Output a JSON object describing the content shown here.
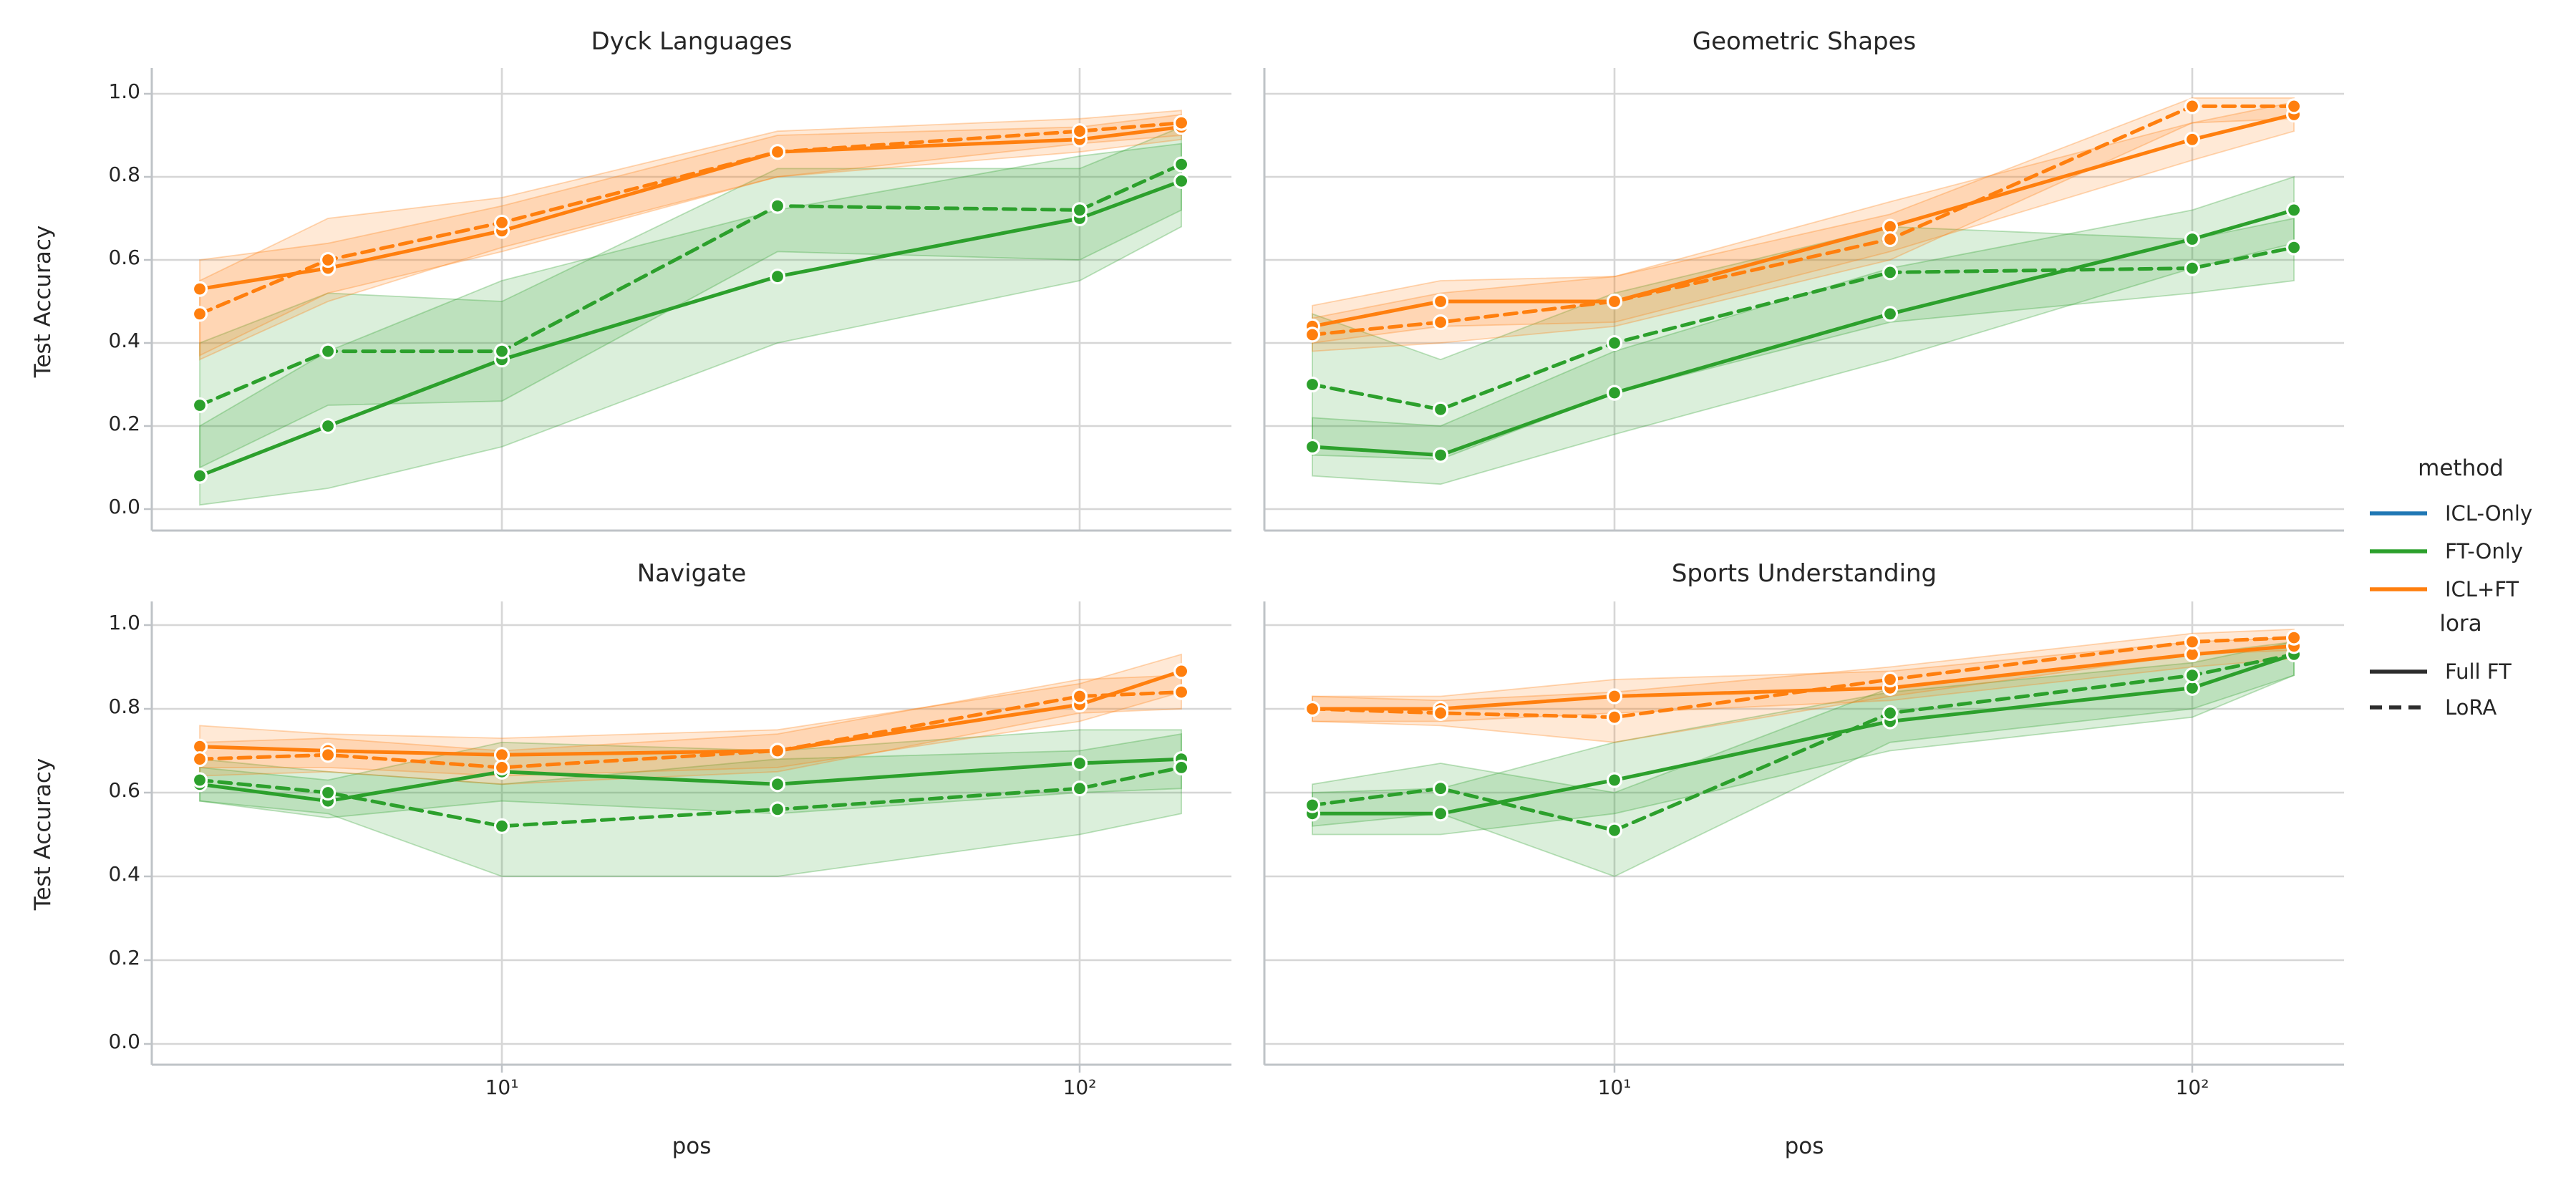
{
  "figure": {
    "background": "#ffffff",
    "text_color": "#262626",
    "grid_color": "#d6d6d6",
    "spine_color": "#bfc3c7",
    "marker_edge_color": "#ffffff"
  },
  "axes": {
    "xlabel": "pos",
    "ylabel": "Test Accuracy",
    "x_tick_labels": [
      "10¹",
      "10²"
    ],
    "x_tick_values": [
      10,
      100
    ],
    "y_tick_labels": [
      "0.0",
      "0.2",
      "0.4",
      "0.6",
      "0.8",
      "1.0"
    ],
    "y_tick_values": [
      0.0,
      0.2,
      0.4,
      0.6,
      0.8,
      1.0
    ],
    "ylim": [
      0.0,
      1.0
    ],
    "xscale": "log",
    "grid": true
  },
  "legend": {
    "method_group": {
      "title": "method",
      "items": [
        {
          "label": "ICL-Only",
          "color": "#1f77b4",
          "dash": false
        },
        {
          "label": "FT-Only",
          "color": "#2ca02c",
          "dash": false
        },
        {
          "label": "ICL+FT",
          "color": "#ff7f0e",
          "dash": false
        }
      ]
    },
    "lora_group": {
      "title": "lora",
      "items": [
        {
          "label": "Full FT",
          "color": "#2d2d2d",
          "dash": false
        },
        {
          "label": "LoRA",
          "color": "#2d2d2d",
          "dash": true
        }
      ]
    }
  },
  "chart_data": [
    {
      "title": "Dyck Languages",
      "type": "line",
      "xscale": "log",
      "x": [
        3,
        5,
        10,
        30,
        100,
        150
      ],
      "ylim": [
        0,
        1
      ],
      "series": [
        {
          "method": "FT-Only",
          "lora": "Full FT",
          "color": "#2ca02c",
          "dash": false,
          "values": [
            0.08,
            0.2,
            0.36,
            0.56,
            0.7,
            0.79
          ],
          "ci_lo": [
            0.01,
            0.05,
            0.15,
            0.4,
            0.55,
            0.68
          ],
          "ci_hi": [
            0.2,
            0.38,
            0.55,
            0.72,
            0.85,
            0.88
          ]
        },
        {
          "method": "FT-Only",
          "lora": "LoRA",
          "color": "#2ca02c",
          "dash": true,
          "values": [
            0.25,
            0.38,
            0.38,
            0.73,
            0.72,
            0.83
          ],
          "ci_lo": [
            0.1,
            0.25,
            0.26,
            0.62,
            0.6,
            0.72
          ],
          "ci_hi": [
            0.4,
            0.52,
            0.5,
            0.82,
            0.82,
            0.92
          ]
        },
        {
          "method": "ICL+FT",
          "lora": "Full FT",
          "color": "#ff7f0e",
          "dash": false,
          "values": [
            0.53,
            0.58,
            0.67,
            0.86,
            0.89,
            0.92
          ],
          "ci_lo": [
            0.37,
            0.52,
            0.62,
            0.8,
            0.86,
            0.89
          ],
          "ci_hi": [
            0.6,
            0.64,
            0.73,
            0.9,
            0.92,
            0.95
          ]
        },
        {
          "method": "ICL+FT",
          "lora": "LoRA",
          "color": "#ff7f0e",
          "dash": true,
          "values": [
            0.47,
            0.6,
            0.69,
            0.86,
            0.91,
            0.93
          ],
          "ci_lo": [
            0.36,
            0.5,
            0.63,
            0.8,
            0.88,
            0.9
          ],
          "ci_hi": [
            0.55,
            0.7,
            0.75,
            0.91,
            0.94,
            0.96
          ]
        }
      ]
    },
    {
      "title": "Geometric Shapes",
      "type": "line",
      "xscale": "log",
      "x": [
        3,
        5,
        10,
        30,
        100,
        150
      ],
      "ylim": [
        0,
        1
      ],
      "series": [
        {
          "method": "FT-Only",
          "lora": "Full FT",
          "color": "#2ca02c",
          "dash": false,
          "values": [
            0.15,
            0.13,
            0.28,
            0.47,
            0.65,
            0.72
          ],
          "ci_lo": [
            0.08,
            0.06,
            0.18,
            0.36,
            0.58,
            0.64
          ],
          "ci_hi": [
            0.22,
            0.2,
            0.38,
            0.58,
            0.72,
            0.8
          ]
        },
        {
          "method": "FT-Only",
          "lora": "LoRA",
          "color": "#2ca02c",
          "dash": true,
          "values": [
            0.3,
            0.24,
            0.4,
            0.57,
            0.58,
            0.63
          ],
          "ci_lo": [
            0.13,
            0.12,
            0.28,
            0.45,
            0.52,
            0.55
          ],
          "ci_hi": [
            0.47,
            0.36,
            0.52,
            0.68,
            0.65,
            0.7
          ]
        },
        {
          "method": "ICL+FT",
          "lora": "Full FT",
          "color": "#ff7f0e",
          "dash": false,
          "values": [
            0.44,
            0.5,
            0.5,
            0.68,
            0.89,
            0.95
          ],
          "ci_lo": [
            0.4,
            0.44,
            0.45,
            0.62,
            0.84,
            0.91
          ],
          "ci_hi": [
            0.49,
            0.55,
            0.56,
            0.74,
            0.93,
            0.98
          ]
        },
        {
          "method": "ICL+FT",
          "lora": "LoRA",
          "color": "#ff7f0e",
          "dash": true,
          "values": [
            0.42,
            0.45,
            0.5,
            0.65,
            0.97,
            0.97
          ],
          "ci_lo": [
            0.38,
            0.4,
            0.44,
            0.6,
            0.93,
            0.94
          ],
          "ci_hi": [
            0.46,
            0.52,
            0.56,
            0.71,
            0.99,
            0.99
          ]
        }
      ]
    },
    {
      "title": "Navigate",
      "type": "line",
      "xscale": "log",
      "x": [
        3,
        5,
        10,
        30,
        100,
        150
      ],
      "ylim": [
        0,
        1
      ],
      "series": [
        {
          "method": "FT-Only",
          "lora": "Full FT",
          "color": "#2ca02c",
          "dash": false,
          "values": [
            0.62,
            0.58,
            0.65,
            0.62,
            0.67,
            0.68
          ],
          "ci_lo": [
            0.58,
            0.54,
            0.58,
            0.55,
            0.6,
            0.61
          ],
          "ci_hi": [
            0.66,
            0.63,
            0.72,
            0.7,
            0.75,
            0.75
          ]
        },
        {
          "method": "FT-Only",
          "lora": "LoRA",
          "color": "#2ca02c",
          "dash": true,
          "values": [
            0.63,
            0.6,
            0.52,
            0.56,
            0.61,
            0.66
          ],
          "ci_lo": [
            0.58,
            0.55,
            0.4,
            0.4,
            0.5,
            0.55
          ],
          "ci_hi": [
            0.68,
            0.65,
            0.62,
            0.68,
            0.7,
            0.74
          ]
        },
        {
          "method": "ICL+FT",
          "lora": "Full FT",
          "color": "#ff7f0e",
          "dash": false,
          "values": [
            0.71,
            0.7,
            0.69,
            0.7,
            0.81,
            0.89
          ],
          "ci_lo": [
            0.66,
            0.66,
            0.64,
            0.66,
            0.77,
            0.84
          ],
          "ci_hi": [
            0.76,
            0.74,
            0.73,
            0.75,
            0.86,
            0.93
          ]
        },
        {
          "method": "ICL+FT",
          "lora": "LoRA",
          "color": "#ff7f0e",
          "dash": true,
          "values": [
            0.68,
            0.69,
            0.66,
            0.7,
            0.83,
            0.84
          ],
          "ci_lo": [
            0.64,
            0.65,
            0.62,
            0.65,
            0.79,
            0.8
          ],
          "ci_hi": [
            0.72,
            0.73,
            0.7,
            0.74,
            0.87,
            0.88
          ]
        }
      ]
    },
    {
      "title": "Sports Understanding",
      "type": "line",
      "xscale": "log",
      "x": [
        3,
        5,
        10,
        30,
        100,
        150
      ],
      "ylim": [
        0,
        1
      ],
      "series": [
        {
          "method": "FT-Only",
          "lora": "Full FT",
          "color": "#2ca02c",
          "dash": false,
          "values": [
            0.55,
            0.55,
            0.63,
            0.77,
            0.85,
            0.93
          ],
          "ci_lo": [
            0.5,
            0.5,
            0.55,
            0.7,
            0.78,
            0.88
          ],
          "ci_hi": [
            0.6,
            0.61,
            0.72,
            0.84,
            0.91,
            0.96
          ]
        },
        {
          "method": "FT-Only",
          "lora": "LoRA",
          "color": "#2ca02c",
          "dash": true,
          "values": [
            0.57,
            0.61,
            0.51,
            0.79,
            0.88,
            0.93
          ],
          "ci_lo": [
            0.52,
            0.55,
            0.4,
            0.72,
            0.8,
            0.88
          ],
          "ci_hi": [
            0.62,
            0.67,
            0.6,
            0.85,
            0.93,
            0.96
          ]
        },
        {
          "method": "ICL+FT",
          "lora": "Full FT",
          "color": "#ff7f0e",
          "dash": false,
          "values": [
            0.8,
            0.8,
            0.83,
            0.85,
            0.93,
            0.95
          ],
          "ci_lo": [
            0.77,
            0.77,
            0.79,
            0.82,
            0.9,
            0.92
          ],
          "ci_hi": [
            0.83,
            0.83,
            0.87,
            0.89,
            0.96,
            0.97
          ]
        },
        {
          "method": "ICL+FT",
          "lora": "LoRA",
          "color": "#ff7f0e",
          "dash": true,
          "values": [
            0.8,
            0.79,
            0.78,
            0.87,
            0.96,
            0.97
          ],
          "ci_lo": [
            0.77,
            0.76,
            0.72,
            0.83,
            0.93,
            0.94
          ],
          "ci_hi": [
            0.83,
            0.82,
            0.84,
            0.9,
            0.98,
            0.99
          ]
        }
      ]
    }
  ]
}
